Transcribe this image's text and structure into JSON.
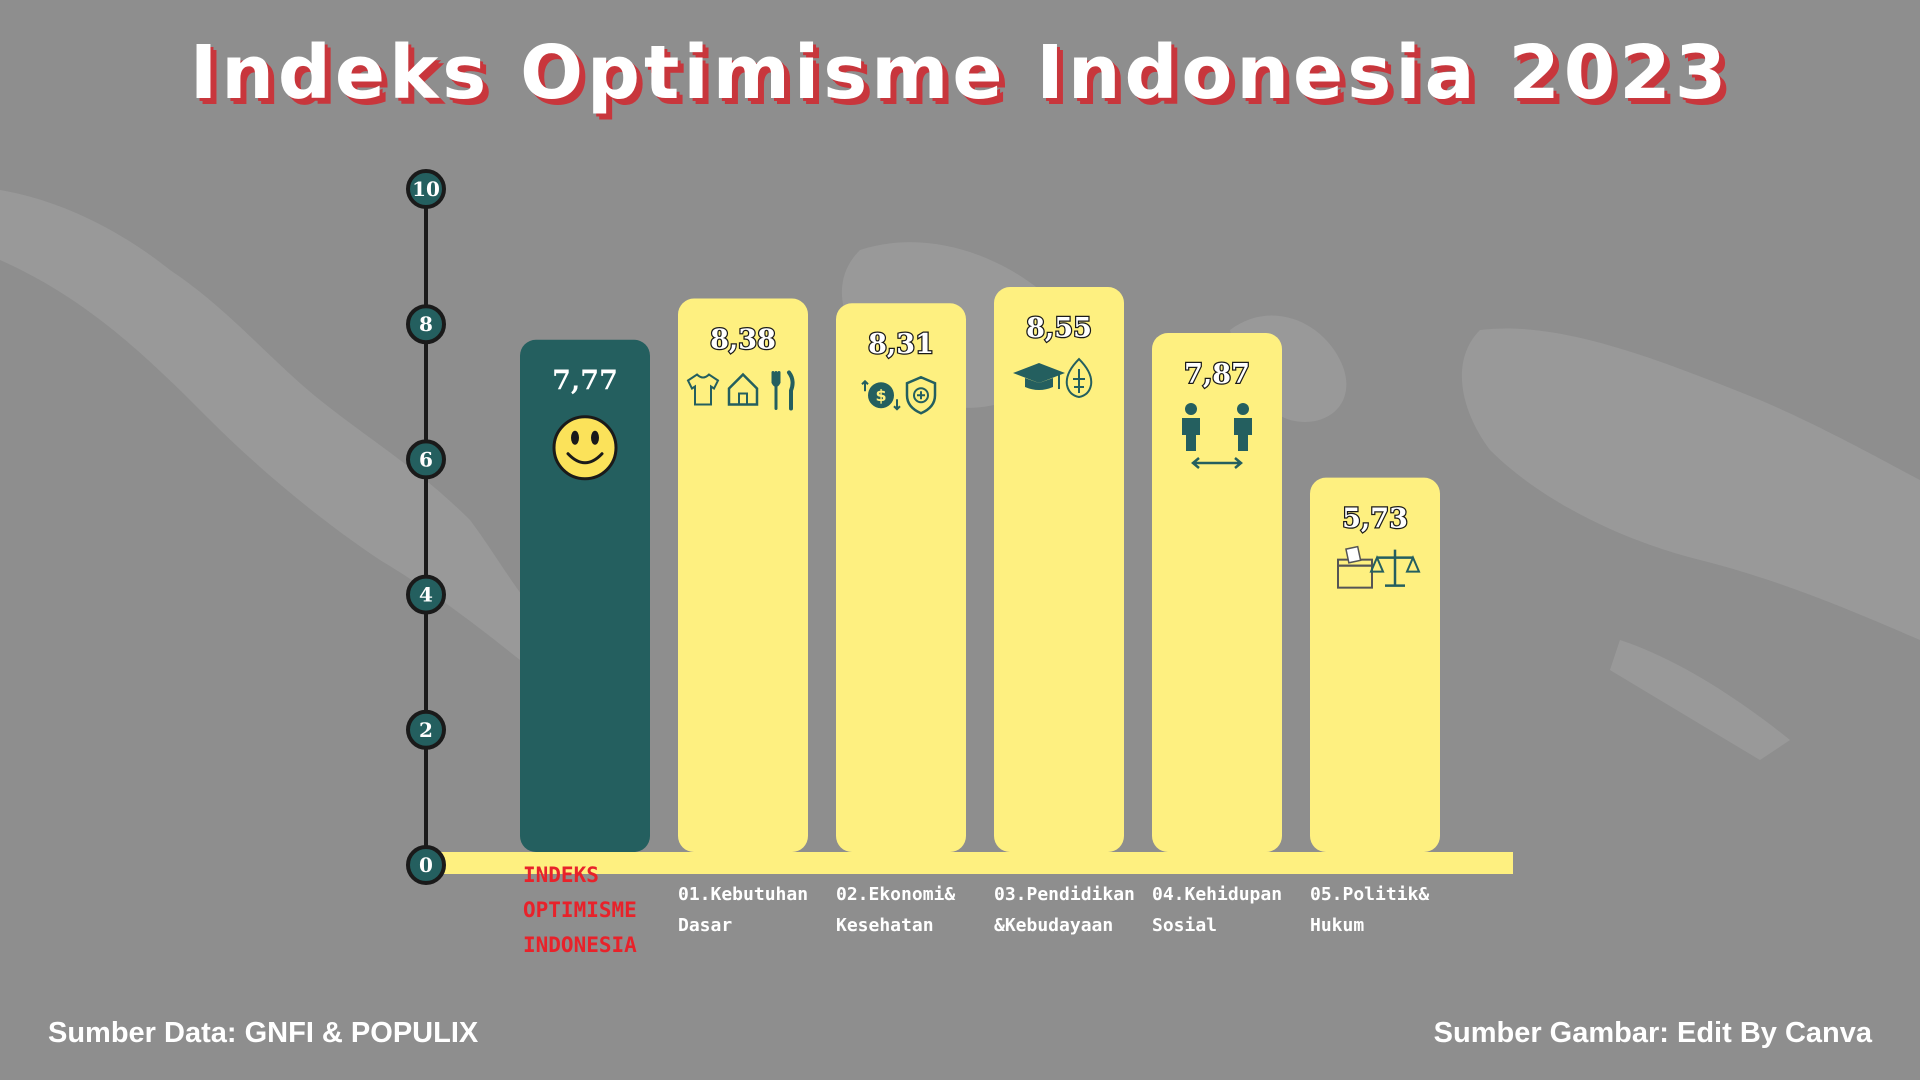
{
  "title": "Indeks Optimisme Indonesia 2023",
  "sources": {
    "data": "Sumber Data: GNFI & POPULIX",
    "image": "Sumber Gambar: Edit By Canva"
  },
  "colors": {
    "background": "#8e8e8e",
    "main_bar": "#245f5f",
    "bars": "#fef080",
    "title_shadow": "#c8363c",
    "main_label": "#e8222a",
    "axis": "#1a1a1a"
  },
  "chart_data": {
    "type": "bar",
    "title": "Indeks Optimisme Indonesia 2023",
    "xlabel": "",
    "ylabel": "",
    "ylim": [
      0,
      10
    ],
    "yticks": [
      "0",
      "2",
      "4",
      "6",
      "8",
      "10"
    ],
    "grid": false,
    "categories": [
      [
        "INDEKS",
        "OPTIMISME",
        "INDONESIA"
      ],
      [
        "01.Kebutuhan",
        "Dasar"
      ],
      [
        "02.Ekonomi&",
        "Kesehatan"
      ],
      [
        "03.Pendidikan",
        "&Kebudayaan"
      ],
      [
        "04.Kehidupan",
        "Sosial"
      ],
      [
        "05.Politik&",
        "Hukum"
      ]
    ],
    "values": [
      7.77,
      8.38,
      8.31,
      8.55,
      7.87,
      5.73
    ],
    "value_labels": [
      "7,77",
      "8,38",
      "8,31",
      "8,55",
      "7,87",
      "5,73"
    ],
    "icons": [
      [
        "smiley-icon"
      ],
      [
        "shirt-icon",
        "house-icon",
        "cutlery-icon"
      ],
      [
        "money-icon",
        "health-shield-icon"
      ],
      [
        "graduation-cap-icon",
        "gunungan-icon"
      ],
      [
        "people-icon"
      ],
      [
        "ballot-box-icon",
        "scales-icon"
      ]
    ]
  }
}
